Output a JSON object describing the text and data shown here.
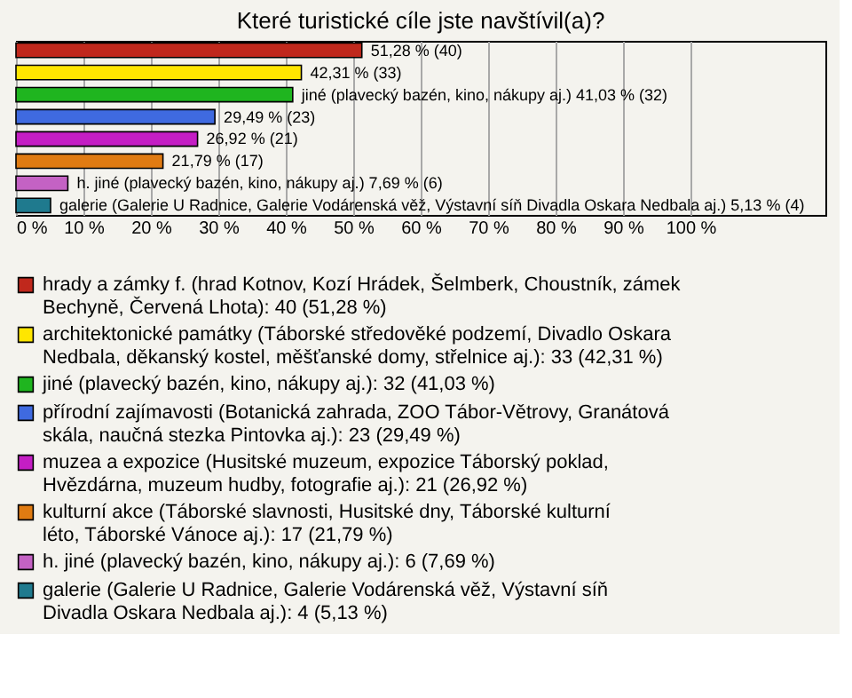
{
  "chart_data": {
    "type": "bar",
    "orientation": "horizontal",
    "title": "Které turistické cíle jste navštívil(a)?",
    "categories": [
      null,
      null,
      null,
      null,
      null,
      null,
      null,
      null
    ],
    "series": [
      {
        "name": "hrady a zámky f. (hrad Kotnov, Kozí Hrádek, Šelmberk, Choustník, zámek Bechyně, Červená Lhota): 40 (51,28 %)",
        "color": "#c0281c",
        "values": [
          51.28,
          null,
          null,
          null,
          null,
          null,
          null,
          null
        ],
        "value_labels": [
          "51,28 % (40)",
          null,
          null,
          null,
          null,
          null,
          null,
          null
        ]
      },
      {
        "name": "architektonické památky (Táborské středověké podzemí, Divadlo Oskara Nedbala, děkanský kostel, měšťanské domy, střelnice aj.): 33 (42,31 %)",
        "color": "#ffe600",
        "values": [
          null,
          42.31,
          null,
          null,
          null,
          null,
          null,
          null
        ],
        "value_labels": [
          null,
          "42,31 % (33)",
          null,
          null,
          null,
          null,
          null,
          null
        ]
      },
      {
        "name": "jiné (plavecký bazén, kino, nákupy aj.): 32 (41,03 %)",
        "color": "#1fb51f",
        "values": [
          null,
          null,
          41.03,
          null,
          null,
          null,
          null,
          null
        ],
        "value_labels": [
          null,
          null,
          "jiné (plavecký bazén, kino, nákupy aj.) 41,03 % (32)",
          null,
          null,
          null,
          null,
          null
        ]
      },
      {
        "name": "přírodní zajímavosti (Botanická zahrada, ZOO Tábor-Větrovy, Granátová skála, naučná stezka Pintovka aj.): 23 (29,49 %)",
        "color": "#3f6ae0",
        "values": [
          null,
          null,
          null,
          29.49,
          null,
          null,
          null,
          null
        ],
        "value_labels": [
          null,
          null,
          null,
          "29,49 % (23)",
          null,
          null,
          null,
          null
        ]
      },
      {
        "name": "muzea a expozice (Husitské muzeum, expozice Táborský poklad, Hvězdárna, muzeum hudby, fotografie aj.): 21 (26,92 %)",
        "color": "#c41ec4",
        "values": [
          null,
          null,
          null,
          null,
          26.92,
          null,
          null,
          null
        ],
        "value_labels": [
          null,
          null,
          null,
          null,
          "26,92 % (21)",
          null,
          null,
          null
        ]
      },
      {
        "name": "kulturní akce (Táborské slavnosti, Husitské dny, Táborské kulturní léto, Táborské Vánoce aj.): 17 (21,79 %)",
        "color": "#e07b12",
        "values": [
          null,
          null,
          null,
          null,
          null,
          21.79,
          null,
          null
        ],
        "value_labels": [
          null,
          null,
          null,
          null,
          null,
          "21,79 % (17)",
          null,
          null
        ]
      },
      {
        "name": "h. jiné (plavecký bazén, kino, nákupy aj.): 6 (7,69 %)",
        "color": "#c462c4",
        "values": [
          null,
          null,
          null,
          null,
          null,
          null,
          7.69,
          null
        ],
        "value_labels": [
          null,
          null,
          null,
          null,
          null,
          null,
          "h. jiné (plavecký bazén, kino, nákupy aj.) 7,69 % (6)",
          null
        ]
      },
      {
        "name": "galerie (Galerie U Radnice, Galerie Vodárenská věž, Výstavní síň Divadla Oskara Nedbala aj.): 4 (5,13 %)",
        "color": "#1f7a8e",
        "values": [
          null,
          null,
          null,
          null,
          null,
          null,
          null,
          5.13
        ],
        "value_labels": [
          null,
          null,
          null,
          null,
          null,
          null,
          null,
          "galerie (Galerie U Radnice, Galerie Vodárenská věž, Výstavní síň Divadla Oskara Nedbala aj.) 5,13 % (4)"
        ]
      }
    ],
    "xlim": [
      0,
      120
    ],
    "xticks": [
      {
        "value": 0,
        "label": "0 %"
      },
      {
        "value": 10,
        "label": "10 %"
      },
      {
        "value": 20,
        "label": "20 %"
      },
      {
        "value": 30,
        "label": "30 %"
      },
      {
        "value": 40,
        "label": "40 %"
      },
      {
        "value": 50,
        "label": "50 %"
      },
      {
        "value": 60,
        "label": "60 %"
      },
      {
        "value": 70,
        "label": "70 %"
      },
      {
        "value": 80,
        "label": "80 %"
      },
      {
        "value": 90,
        "label": "90 %"
      },
      {
        "value": 100,
        "label": "100 %"
      }
    ],
    "grid": "x",
    "legend": "bottom",
    "tick_labels": "x"
  }
}
